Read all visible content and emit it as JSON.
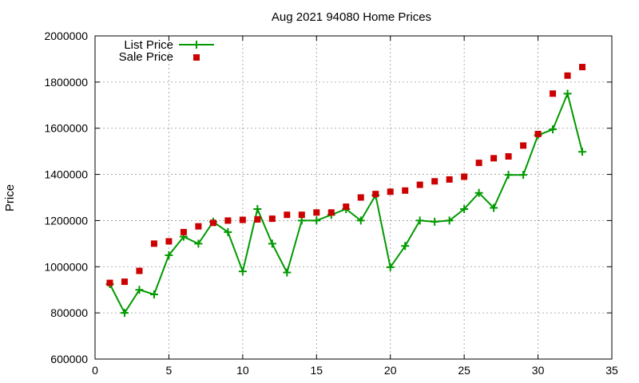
{
  "chart_data": {
    "type": "line",
    "title": "Aug 2021 94080 Home Prices",
    "xlabel": "",
    "ylabel": "Price",
    "xlim": [
      0,
      35
    ],
    "ylim": [
      600000,
      2000000
    ],
    "x_ticks": [
      0,
      5,
      10,
      15,
      20,
      25,
      30,
      35
    ],
    "y_ticks": [
      600000,
      800000,
      1000000,
      1200000,
      1400000,
      1600000,
      1800000,
      2000000
    ],
    "grid": true,
    "legend_position": "top-left",
    "series": [
      {
        "name": "List Price",
        "style": "line-with-plus-markers",
        "color": "#009900",
        "x": [
          1,
          2,
          3,
          4,
          5,
          6,
          7,
          8,
          9,
          10,
          11,
          12,
          13,
          14,
          15,
          16,
          17,
          18,
          19,
          20,
          21,
          22,
          23,
          24,
          25,
          26,
          27,
          28,
          29,
          30,
          31,
          32,
          33
        ],
        "values": [
          925000,
          800000,
          900000,
          880000,
          1050000,
          1130000,
          1100000,
          1195000,
          1150000,
          980000,
          1250000,
          1100000,
          975000,
          1200000,
          1200000,
          1225000,
          1250000,
          1200000,
          1310000,
          998000,
          1090000,
          1200000,
          1195000,
          1200000,
          1250000,
          1320000,
          1255000,
          1398000,
          1398000,
          1570000,
          1595000,
          1750000,
          1498000
        ]
      },
      {
        "name": "Sale Price",
        "style": "square-markers",
        "color": "#cc0000",
        "x": [
          1,
          2,
          3,
          4,
          5,
          6,
          7,
          8,
          9,
          10,
          11,
          12,
          13,
          14,
          15,
          16,
          17,
          18,
          19,
          20,
          21,
          22,
          23,
          24,
          25,
          26,
          27,
          28,
          29,
          30,
          31,
          32,
          33
        ],
        "values": [
          930000,
          935000,
          982000,
          1100000,
          1110000,
          1150000,
          1175000,
          1190000,
          1200000,
          1203000,
          1205000,
          1208000,
          1225000,
          1225000,
          1235000,
          1235000,
          1260000,
          1300000,
          1315000,
          1325000,
          1330000,
          1355000,
          1370000,
          1378000,
          1390000,
          1450000,
          1470000,
          1478000,
          1525000,
          1575000,
          1750000,
          1828000,
          1865000
        ]
      }
    ]
  }
}
